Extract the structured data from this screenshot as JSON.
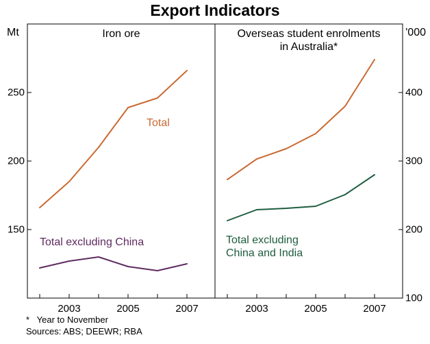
{
  "title": "Export Indicators",
  "axes": {
    "left_unit": "Mt",
    "right_unit": "'000",
    "left_ticks": [
      "250",
      "200",
      "150"
    ],
    "right_ticks": [
      "400",
      "300",
      "200",
      "100"
    ],
    "x_ticks": [
      "2003",
      "2005",
      "2007"
    ]
  },
  "panels": [
    {
      "title_lines": [
        "Iron ore"
      ]
    },
    {
      "title_lines": [
        "Overseas student enrolments",
        "in Australia*"
      ]
    }
  ],
  "labels": {
    "right_excl_line1": "Total excluding",
    "right_excl_line2": "China and India"
  },
  "footnotes": [
    "*   Year to November",
    "Sources: ABS; DEEWR; RBA"
  ],
  "chart_data": [
    {
      "type": "line",
      "title": "Iron ore",
      "ylabel": "Mt",
      "ylim": [
        100,
        300
      ],
      "grid": false,
      "x": [
        2002,
        2003,
        2004,
        2005,
        2006,
        2007
      ],
      "series": [
        {
          "name": "Total",
          "color": "#c96a33",
          "values": [
            166,
            185,
            210,
            239,
            246,
            266
          ]
        },
        {
          "name": "Total excluding China",
          "color": "#5e2a60",
          "values": [
            122,
            127,
            130,
            123,
            120,
            125
          ]
        }
      ]
    },
    {
      "type": "line",
      "title": "Overseas student enrolments in Australia*",
      "ylabel": "'000",
      "ylim": [
        100,
        500
      ],
      "grid": false,
      "x": [
        2002,
        2003,
        2004,
        2005,
        2006,
        2007
      ],
      "series": [
        {
          "name": "Total",
          "color": "#c96a33",
          "values": [
            273,
            303,
            318,
            340,
            380,
            448
          ]
        },
        {
          "name": "Total excluding China and India",
          "color": "#1e5c3f",
          "values": [
            213,
            229,
            231,
            234,
            251,
            280
          ]
        }
      ]
    }
  ]
}
